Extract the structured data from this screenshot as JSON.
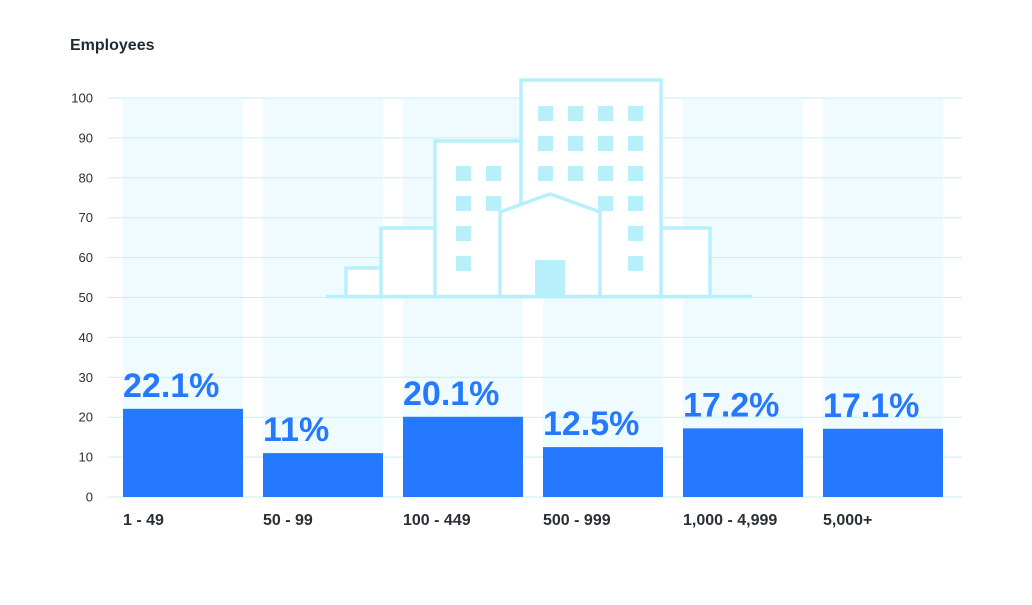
{
  "chart_data": {
    "type": "bar",
    "title": "Employees",
    "categories": [
      "1 - 49",
      "50 - 99",
      "100 - 449",
      "500 - 999",
      "1,000 - 4,999",
      "5,000+"
    ],
    "values": [
      22.1,
      11,
      20.1,
      12.5,
      17.2,
      17.1
    ],
    "data_labels": [
      "22.1%",
      "11%",
      "20.1%",
      "12.5%",
      "17.2%",
      "17.1%"
    ],
    "yticks": [
      0,
      10,
      20,
      30,
      40,
      50,
      60,
      70,
      80,
      90,
      100
    ],
    "ylim": [
      0,
      100
    ],
    "xlabel": "",
    "ylabel": "",
    "grid": true,
    "colors": {
      "bar": "#2479ff",
      "column_bg": "#effbfe",
      "grid": "#c9eef6",
      "illustration": "#b7f0fb",
      "label": "#2479ff"
    },
    "illustration_icon": "office-building-icon"
  }
}
